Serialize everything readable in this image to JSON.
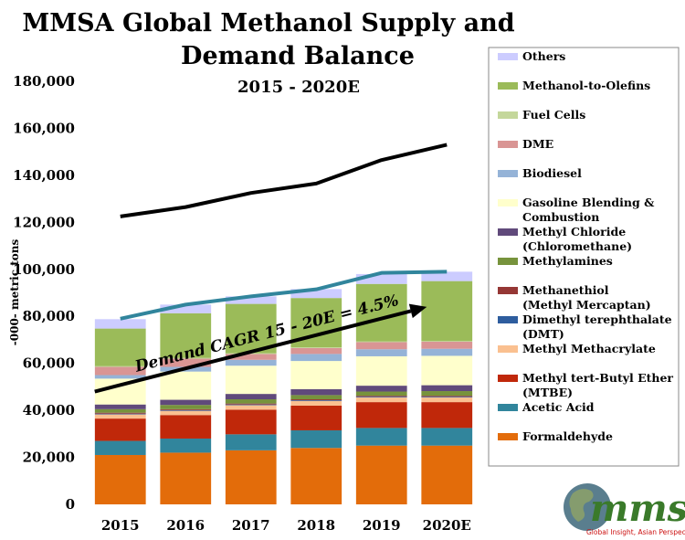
{
  "chart_data": {
    "type": "bar",
    "stacked": true,
    "title_lines": [
      "MMSA Global Methanol Supply and",
      "Demand Balance"
    ],
    "subtitle": "2015 - 2020E",
    "ylabel": "-000- metric tons",
    "xlabel": "",
    "ylim": [
      0,
      180000
    ],
    "yticks": [
      0,
      20000,
      40000,
      60000,
      80000,
      100000,
      120000,
      140000,
      160000,
      180000
    ],
    "ytick_labels": [
      "0",
      "20,000",
      "40,000",
      "60,000",
      "80,000",
      "100,000",
      "120,000",
      "140,000",
      "160,000",
      "180,000"
    ],
    "categories": [
      "2015",
      "2016",
      "2017",
      "2018",
      "2019",
      "2020E"
    ],
    "grid": false,
    "legend_position": "right",
    "series": [
      {
        "name": "Formaldehyde",
        "color": "#E36C0A",
        "values": [
          21000,
          22000,
          23000,
          24000,
          25000,
          25000
        ]
      },
      {
        "name": "Acetic Acid",
        "color": "#31859C",
        "values": [
          6000,
          6000,
          6800,
          7500,
          7500,
          7500
        ]
      },
      {
        "name": "Methyl tert-Butyl Ether (MTBE)",
        "color": "#C0280A",
        "values": [
          9500,
          10000,
          10500,
          10500,
          11000,
          11000
        ]
      },
      {
        "name": "Methyl Methacrylate",
        "color": "#FAC090",
        "values": [
          1800,
          1800,
          1900,
          2000,
          2000,
          2000
        ]
      },
      {
        "name": "Dimethyl terephthalate (DMT)",
        "color": "#2E5D9E",
        "values": [
          300,
          300,
          300,
          300,
          300,
          300
        ]
      },
      {
        "name": "Methanethiol (Methyl Mercaptan)",
        "color": "#953735",
        "values": [
          400,
          400,
          400,
          400,
          400,
          400
        ]
      },
      {
        "name": "Methylamines",
        "color": "#77933C",
        "values": [
          1500,
          1800,
          1800,
          1800,
          1800,
          2000
        ]
      },
      {
        "name": "Methyl Chloride (Chloromethane)",
        "color": "#604A7B",
        "values": [
          2000,
          2200,
          2300,
          2500,
          2500,
          2500
        ]
      },
      {
        "name": "Gasoline Blending & Combustion",
        "color": "#FFFFCC",
        "values": [
          11000,
          12000,
          12000,
          12000,
          12500,
          12500
        ]
      },
      {
        "name": "Biodiesel",
        "color": "#95B3D7",
        "values": [
          1500,
          2000,
          2500,
          3000,
          3000,
          3000
        ]
      },
      {
        "name": "DME",
        "color": "#D99594",
        "values": [
          3500,
          3500,
          2500,
          2500,
          3000,
          3000
        ]
      },
      {
        "name": "Fuel Cells",
        "color": "#C4D79B",
        "values": [
          300,
          300,
          300,
          300,
          300,
          300
        ]
      },
      {
        "name": "Methanol-to-Olefins",
        "color": "#9BBB59",
        "values": [
          16000,
          19000,
          21000,
          21000,
          24500,
          25500
        ]
      },
      {
        "name": "Others",
        "color": "#CCCCFF",
        "values": [
          4000,
          3700,
          3200,
          3800,
          4200,
          4000
        ]
      }
    ],
    "lines": [
      {
        "kind": "supply_capacity",
        "color": "#000000",
        "values": [
          122500,
          126500,
          132500,
          136500,
          146500,
          153000
        ]
      },
      {
        "kind": "total_demand",
        "color": "#31859C",
        "values": [
          79000,
          85000,
          88500,
          91500,
          98500,
          99000
        ]
      }
    ],
    "annotation": {
      "text": "Demand CAGR 15 - 20E = 4.5%",
      "arrow_from": {
        "x": "2015",
        "y": 48000
      },
      "arrow_to": {
        "x": "2020E",
        "y": 84000
      }
    }
  },
  "logo": {
    "name": "mmsa",
    "tagline": "Global Insight, Asian Perspective"
  }
}
